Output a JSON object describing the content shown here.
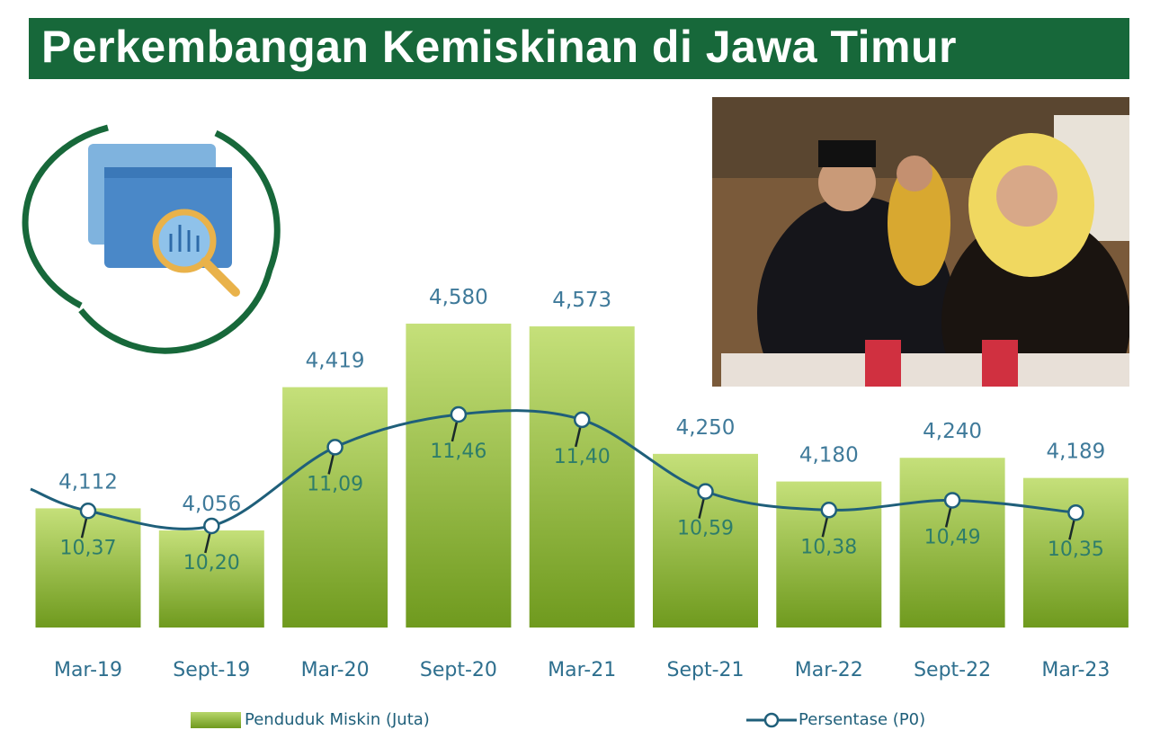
{
  "title": "Perkembangan Kemiskinan di Jawa Timur",
  "colors": {
    "banner": "#17683a",
    "bar_top": "#c5e07a",
    "bar_bottom": "#6f9a1e",
    "line": "#1f5f7a",
    "value_label": "#3f7a9a",
    "pct_label": "#2e7d6a"
  },
  "icons": {
    "infographic": "chart-magnifier-icon",
    "photo": "officials-photo"
  },
  "chart_data": {
    "type": "bar+line",
    "categories": [
      "Mar-19",
      "Sept-19",
      "Mar-20",
      "Sept-20",
      "Mar-21",
      "Sept-21",
      "Mar-22",
      "Sept-22",
      "Mar-23"
    ],
    "series": [
      {
        "name": "Penduduk Miskin (Juta)",
        "type": "bar",
        "values": [
          4112,
          4056,
          4419,
          4580,
          4573,
          4250,
          4180,
          4240,
          4189
        ],
        "labels": [
          "4,112",
          "4,056",
          "4,419",
          "4,580",
          "4,573",
          "4,250",
          "4,180",
          "4,240",
          "4,189"
        ]
      },
      {
        "name": "Persentase (P0)",
        "type": "line",
        "values": [
          10.37,
          10.2,
          11.09,
          11.46,
          11.4,
          10.59,
          10.38,
          10.49,
          10.35
        ],
        "labels": [
          "10,37",
          "10,20",
          "11,09",
          "11,46",
          "11,40",
          "10,59",
          "10,38",
          "10,49",
          "10,35"
        ]
      }
    ],
    "grid": false,
    "legend": "bottom"
  }
}
